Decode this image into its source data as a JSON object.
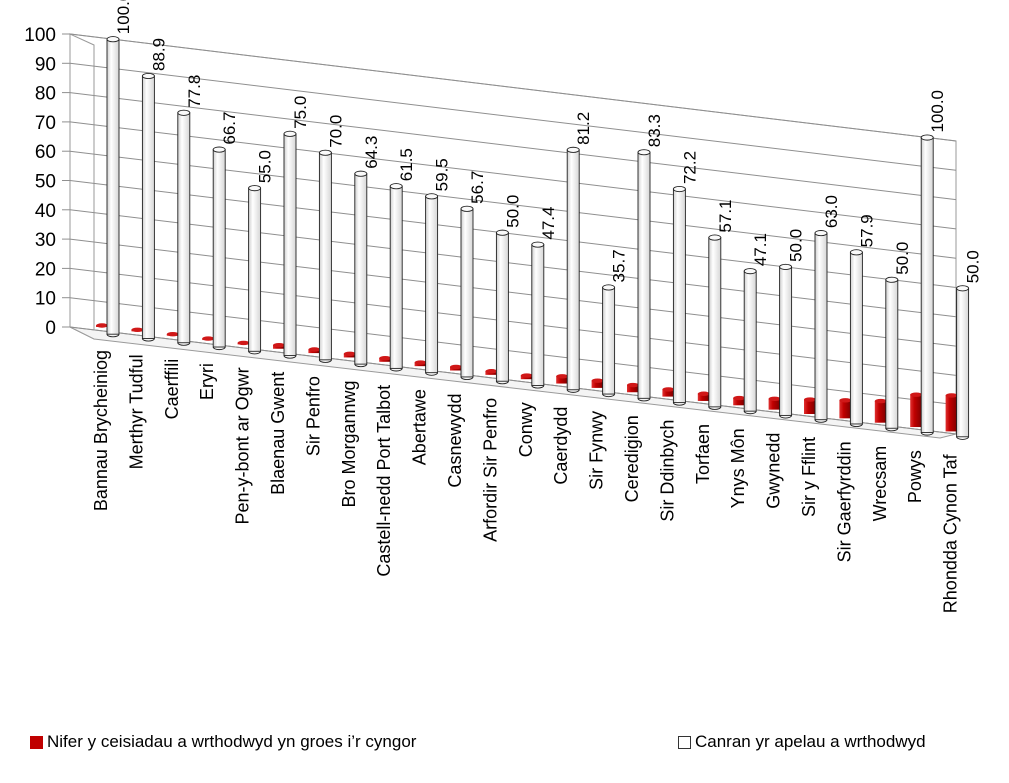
{
  "chart_data": {
    "type": "bar",
    "categories": [
      "Bannau Brycheiniog",
      "Merthyr Tudful",
      "Caerffili",
      "Eryri",
      "Pen-y-bont ar Ogwr",
      "Blaenau Gwent",
      "Sir Penfro",
      "Bro Morgannwg",
      "Castell-nedd Port Talbot",
      "Abertawe",
      "Casnewydd",
      "Arfordir Sir Penfro",
      "Conwy",
      "Caerdydd",
      "Sir Fynwy",
      "Ceredigion",
      "Sir Ddinbych",
      "Torfaen",
      "Ynys Môn",
      "Gwynedd",
      "Sir y Fflint",
      "Sir Gaerfyrddin",
      "Wrecsam",
      "Powys",
      "Rhondda Cynon Taf"
    ],
    "series": [
      {
        "name": "Nifer y ceisiadau a wrthodwyd yn groes i’r cyngor",
        "color": "#c00000",
        "values": [
          0,
          0,
          0,
          0,
          0,
          1,
          1,
          1,
          1,
          1,
          1,
          1,
          1,
          2,
          2,
          2,
          2,
          2,
          2,
          3,
          4,
          5,
          6,
          9,
          10
        ]
      },
      {
        "name": "Canran yr apelau a wrthodwyd",
        "color": "#ffffff",
        "values": [
          100.0,
          88.9,
          77.8,
          66.7,
          55.0,
          75.0,
          70.0,
          64.3,
          61.5,
          59.5,
          56.7,
          50.0,
          47.4,
          81.2,
          35.7,
          83.3,
          72.2,
          57.1,
          47.1,
          50.0,
          63.0,
          57.9,
          50.0,
          100.0,
          50.0
        ]
      }
    ],
    "data_labels": [
      "100.0",
      "88.9",
      "77.8",
      "66.7",
      "55.0",
      "75.0",
      "70.0",
      "64.3",
      "61.5",
      "59.5",
      "56.7",
      "50.0",
      "47.4",
      "81.2",
      "35.7",
      "83.3",
      "72.2",
      "57.1",
      "47.1",
      "50.0",
      "63.0",
      "57.9",
      "50.0",
      "100.0",
      "50.0"
    ],
    "yticks": [
      "0",
      "10",
      "20",
      "30",
      "40",
      "50",
      "60",
      "70",
      "80",
      "90",
      "100"
    ],
    "ylim": [
      0,
      100
    ],
    "grid": true,
    "legend_position": "bottom",
    "title": "",
    "xlabel": "",
    "ylabel": ""
  }
}
